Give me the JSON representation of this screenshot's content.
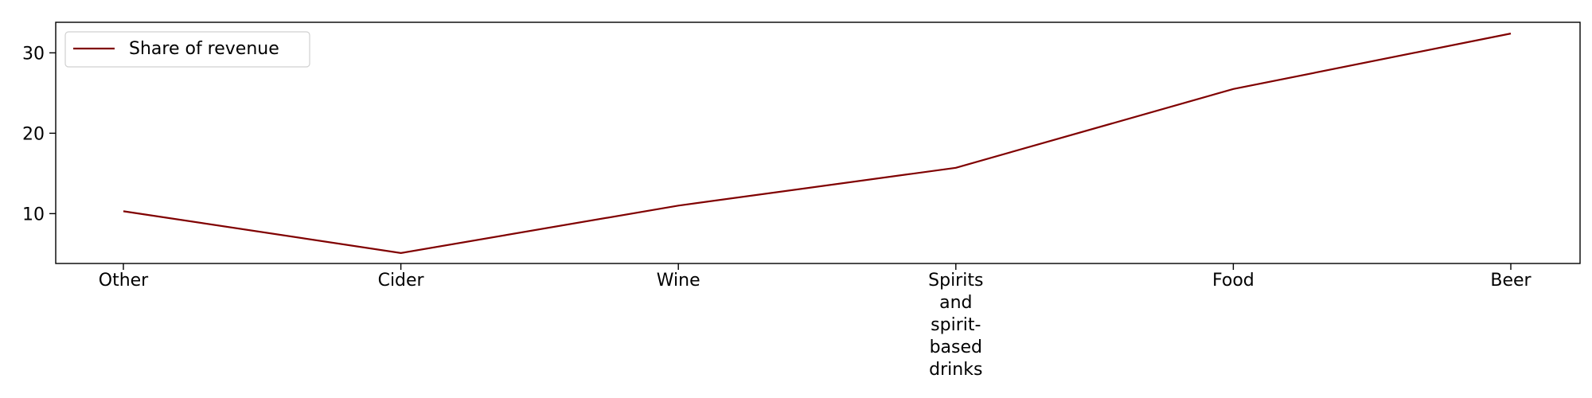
{
  "chart_data": {
    "type": "line",
    "categories": [
      "Other",
      "Cider",
      "Wine",
      "Spirits and spirit-based drinks",
      "Food",
      "Beer"
    ],
    "category_display_lines": [
      [
        "Other"
      ],
      [
        "Cider"
      ],
      [
        "Wine"
      ],
      [
        "Spirits",
        "and",
        "spirit-",
        "based",
        "drinks"
      ],
      [
        "Food"
      ],
      [
        "Beer"
      ]
    ],
    "series": [
      {
        "name": "Share of revenue",
        "values": [
          10.3,
          5.1,
          11.0,
          15.7,
          25.5,
          32.4
        ]
      }
    ],
    "xlabel": "",
    "ylabel": "",
    "ylim": [
      3.8,
      33.8
    ],
    "yticks": [
      10,
      20,
      30
    ],
    "grid": false,
    "legend_position": "top-left",
    "line_color": "#800000"
  }
}
